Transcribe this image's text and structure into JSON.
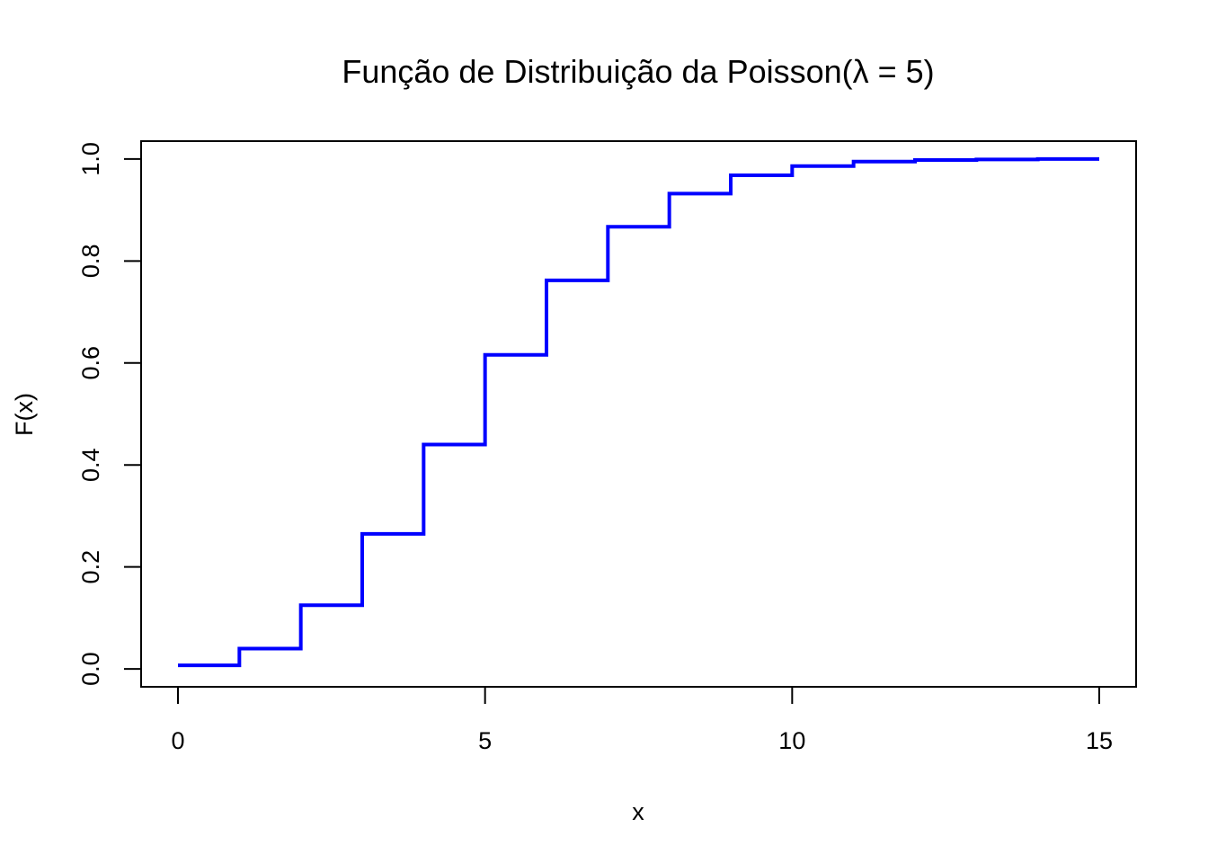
{
  "chart_data": {
    "type": "line",
    "title": "Função de Distribuição da Poisson(λ = 5)",
    "xlabel": "x",
    "ylabel": "F(x)",
    "xlim": [
      -0.6,
      15.6
    ],
    "ylim": [
      -0.035,
      1.035
    ],
    "x_ticks": [
      0,
      5,
      10,
      15
    ],
    "y_ticks": [
      0.0,
      0.2,
      0.4,
      0.6,
      0.8,
      1.0
    ],
    "y_tick_labels": [
      "0.0",
      "0.2",
      "0.4",
      "0.6",
      "0.8",
      "1.0"
    ],
    "grid": false,
    "step": true,
    "series": [
      {
        "color": "#0000ff",
        "x": [
          0,
          1,
          2,
          3,
          4,
          5,
          6,
          7,
          8,
          9,
          10,
          11,
          12,
          13,
          14,
          15
        ],
        "values": [
          0.007,
          0.04,
          0.125,
          0.265,
          0.44,
          0.616,
          0.762,
          0.867,
          0.932,
          0.968,
          0.986,
          0.995,
          0.998,
          0.999,
          1.0,
          1.0
        ]
      }
    ]
  }
}
